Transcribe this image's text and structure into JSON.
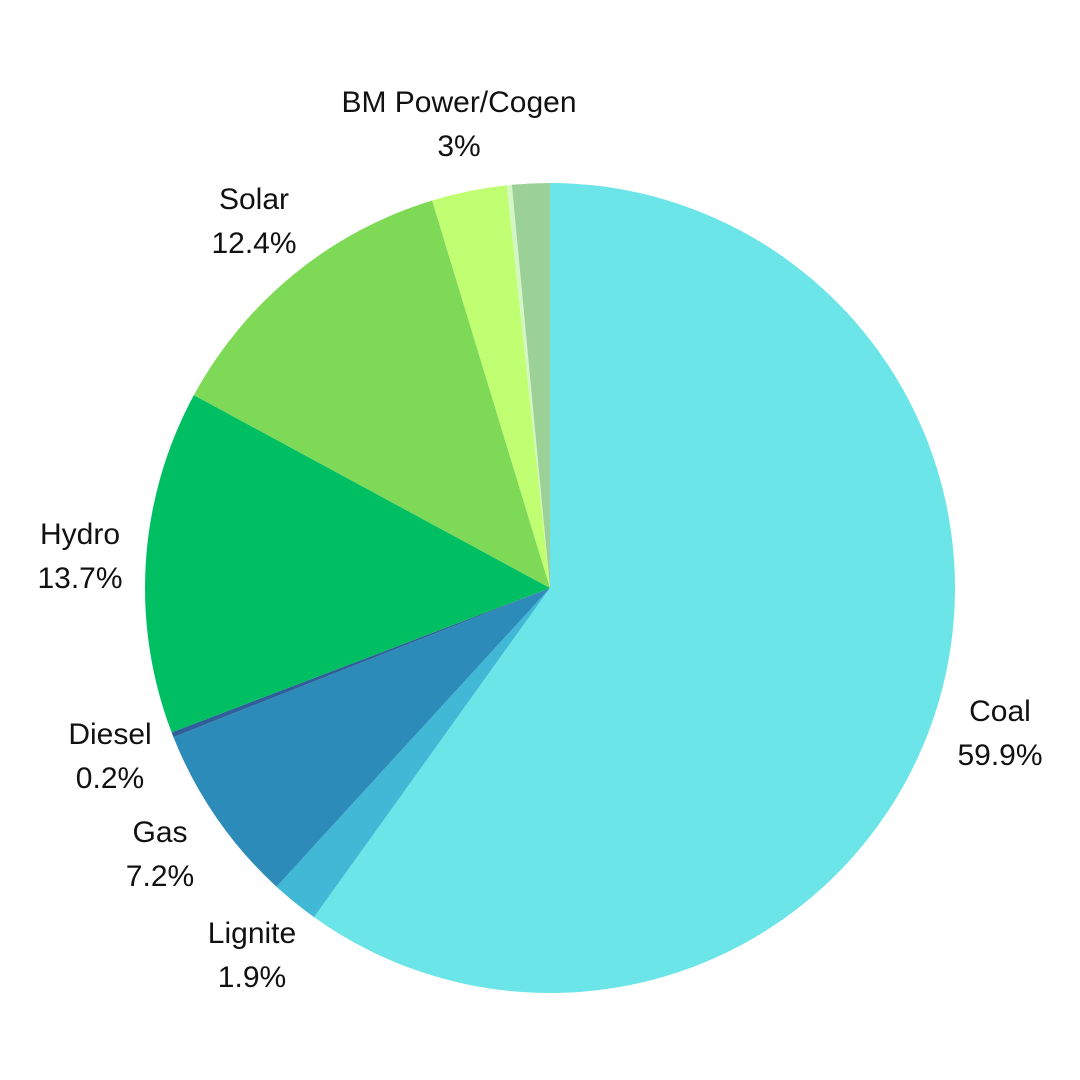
{
  "chart_data": {
    "type": "pie",
    "start": "12 o'clock",
    "direction": "clockwise",
    "slices": [
      {
        "label": "Coal",
        "value": 59.9,
        "value_text": "59.9%",
        "color": "#6CE5E8"
      },
      {
        "label": "Lignite",
        "value": 1.9,
        "value_text": "1.9%",
        "color": "#41B8D5"
      },
      {
        "label": "Gas",
        "value": 7.2,
        "value_text": "7.2%",
        "color": "#2D8BBA"
      },
      {
        "label": "Diesel",
        "value": 0.2,
        "value_text": "0.2%",
        "color": "#2F5F98"
      },
      {
        "label": "Hydro",
        "value": 13.7,
        "value_text": "13.7%",
        "color": "#00BF63"
      },
      {
        "label": "Solar",
        "value": 12.4,
        "value_text": "12.4%",
        "color": "#7ED957"
      },
      {
        "label": "BM Power/Cogen",
        "value": 3,
        "value_text": "3%",
        "color": "#C1FF72"
      },
      {
        "label": "",
        "value": 0.2,
        "value_text": "",
        "color": "#D4F5C4"
      },
      {
        "label": "",
        "value": 1.5,
        "value_text": "",
        "color": "#9BD196"
      }
    ]
  }
}
